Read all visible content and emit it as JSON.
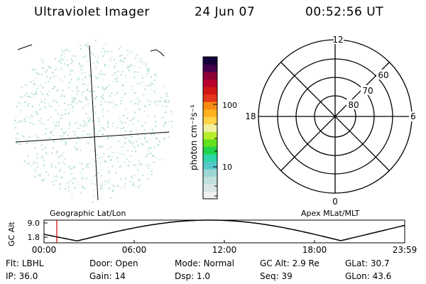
{
  "header": {
    "title": "Ultraviolet Imager",
    "date": "24 Jun 07",
    "time": "00:52:56 UT"
  },
  "colorbar": {
    "label": "photon cm⁻²s⁻¹",
    "ticks": [
      "100",
      "10"
    ],
    "colors": [
      "#eef0f0",
      "#d8e6e6",
      "#bfe0dd",
      "#9bd8d4",
      "#52c8c8",
      "#2fd6a8",
      "#1fd34a",
      "#62e21c",
      "#b7ee2c",
      "#f0f0a0",
      "#ffd34a",
      "#ffb01f",
      "#f88c12",
      "#e2351b",
      "#d01616",
      "#b8002c",
      "#8c0036",
      "#45004a",
      "#13003a"
    ]
  },
  "polar": {
    "labels": {
      "top": "12",
      "bottom": "0",
      "left": "18",
      "right": "6"
    },
    "lat_labels": [
      "80",
      "70",
      "60"
    ]
  },
  "map_labels": {
    "left": "Geographic Lat/Lon",
    "right": "Apex MLat/MLT"
  },
  "altitude_plot": {
    "axis_label": "GC Alt",
    "y_ticks": [
      "9.0",
      "1.8"
    ],
    "x_ticks": [
      "00:00",
      "06:00",
      "12:00",
      "18:00",
      "23:59"
    ],
    "marker_color": "#cc0000"
  },
  "status": {
    "row1": [
      {
        "key": "Flt:",
        "val": "LBHL"
      },
      {
        "key": "Door:",
        "val": "Open"
      },
      {
        "key": "Mode:",
        "val": "Normal"
      },
      {
        "key": "GC Alt:",
        "val": "2.9 Re"
      },
      {
        "key": "GLat:",
        "val": "30.7"
      }
    ],
    "row2": [
      {
        "key": "IP:",
        "val": "36.0"
      },
      {
        "key": "Gain:",
        "val": "14"
      },
      {
        "key": "Dsp:",
        "val": "1.0"
      },
      {
        "key": "Seq:",
        "val": "39"
      },
      {
        "key": "GLon:",
        "val": "43.6"
      }
    ]
  }
}
